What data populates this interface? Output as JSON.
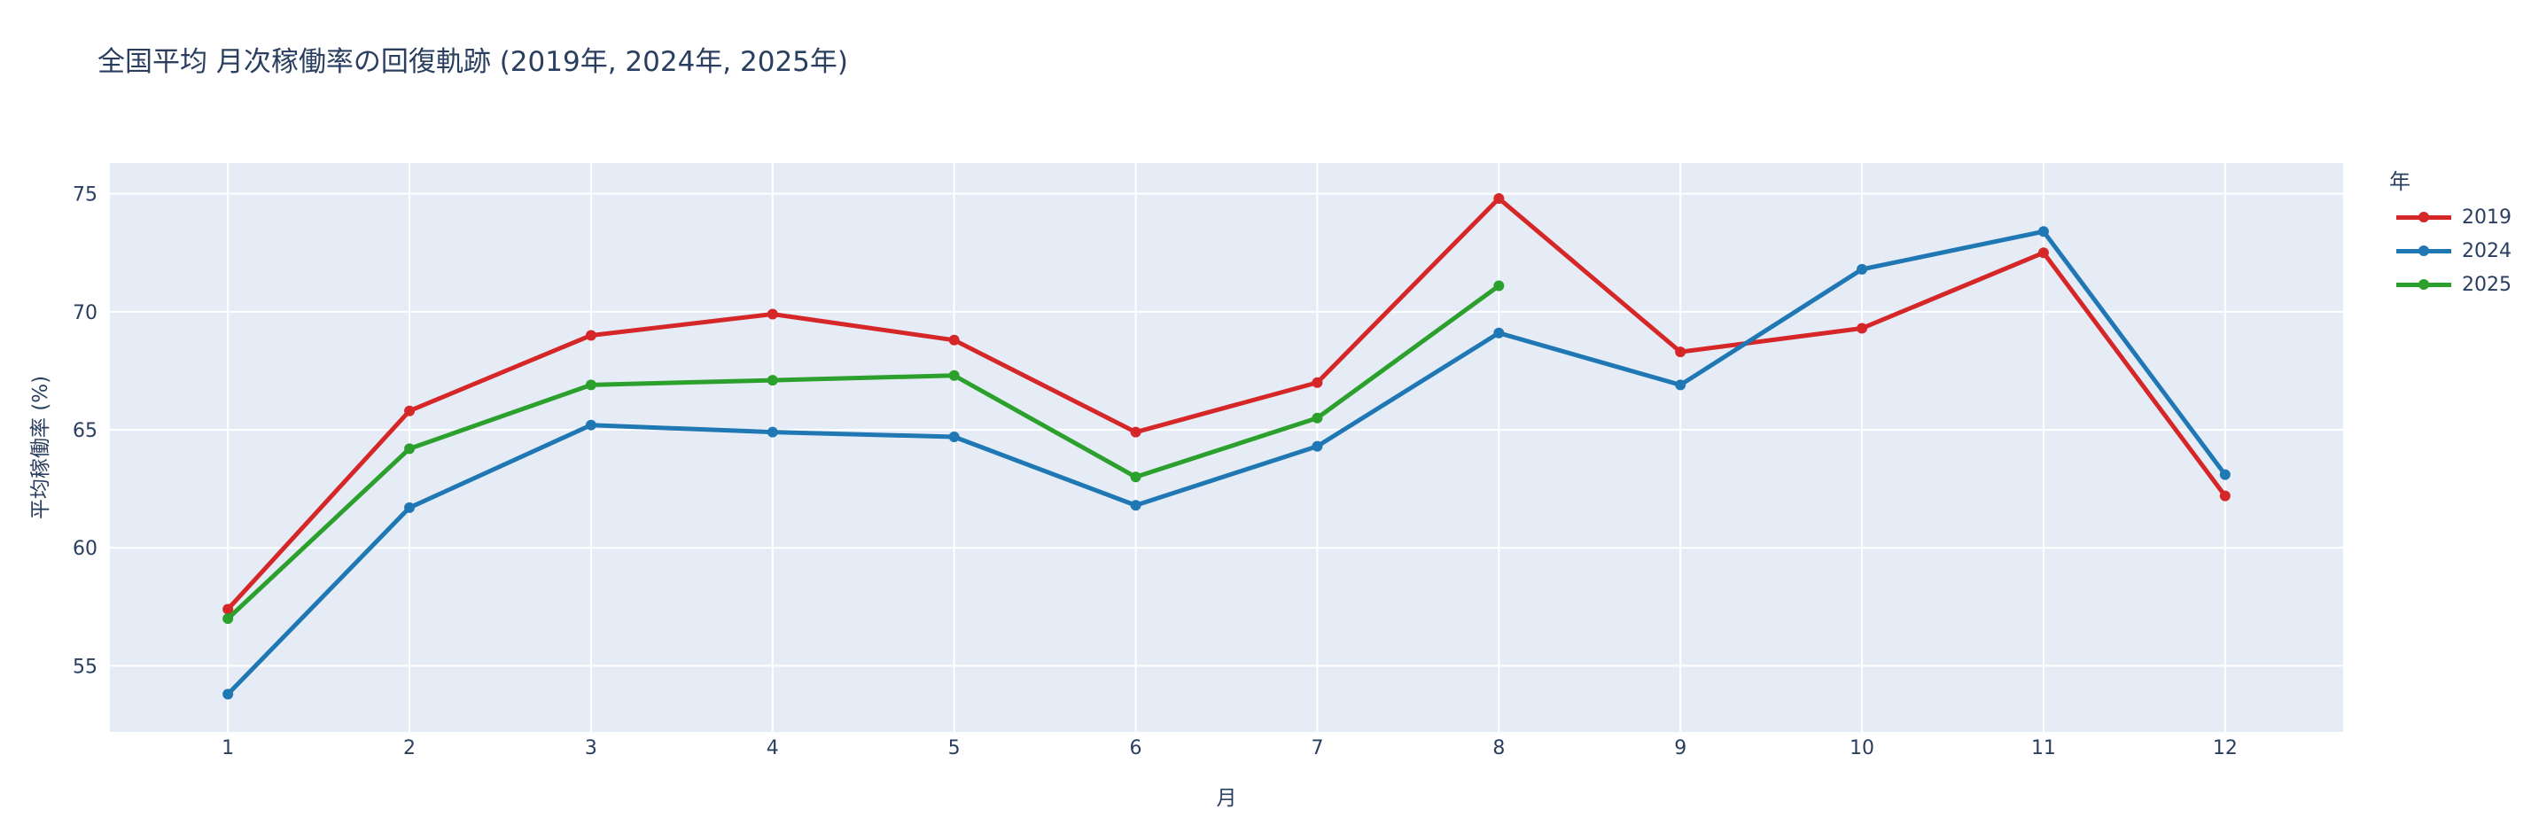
{
  "title": "全国平均 月次稼働率の回復軌跡 (2019年, 2024年, 2025年)",
  "colors": {
    "plot_bg": "#e5ecf6",
    "grid": "#ffffff",
    "text": "#2a3f5f",
    "2019": "#d62728",
    "2024": "#1f77b4",
    "2025": "#2ca02c"
  },
  "legend": {
    "title": "年",
    "items": [
      {
        "label": "2019",
        "color": "#d62728"
      },
      {
        "label": "2024",
        "color": "#1f77b4"
      },
      {
        "label": "2025",
        "color": "#2ca02c"
      }
    ]
  },
  "chart_data": {
    "type": "line",
    "title": "全国平均 月次稼働率の回復軌跡 (2019年, 2024年, 2025年)",
    "xlabel": "月",
    "ylabel": "平均稼働率 (%)",
    "x": [
      1,
      2,
      3,
      4,
      5,
      6,
      7,
      8,
      9,
      10,
      11,
      12
    ],
    "x_tick_labels": [
      "1",
      "2",
      "3",
      "4",
      "5",
      "6",
      "7",
      "8",
      "9",
      "10",
      "11",
      "12"
    ],
    "y_ticks": [
      55,
      60,
      65,
      70,
      75
    ],
    "xlim": [
      0.35,
      12.65
    ],
    "ylim": [
      52.2,
      76.3
    ],
    "grid": true,
    "legend_position": "right",
    "legend_title": "年",
    "series": [
      {
        "name": "2019",
        "color": "#d62728",
        "values": [
          57.4,
          65.8,
          69.0,
          69.9,
          68.8,
          64.9,
          67.0,
          74.8,
          68.3,
          69.3,
          72.5,
          62.2
        ]
      },
      {
        "name": "2024",
        "color": "#1f77b4",
        "values": [
          53.8,
          61.7,
          65.2,
          64.9,
          64.7,
          61.8,
          64.3,
          69.1,
          66.9,
          71.8,
          73.4,
          63.1
        ]
      },
      {
        "name": "2025",
        "color": "#2ca02c",
        "values": [
          57.0,
          64.2,
          66.9,
          67.1,
          67.3,
          63.0,
          65.5,
          71.1,
          null,
          null,
          null,
          null
        ]
      }
    ]
  }
}
